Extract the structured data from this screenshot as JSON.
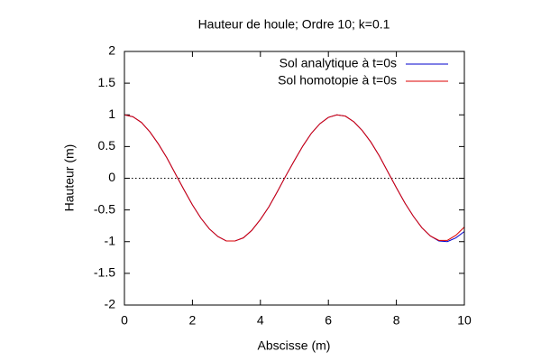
{
  "chart_data": {
    "type": "line",
    "title": "Hauteur de houle; Ordre 10; k=0.1",
    "x_label": "Abscisse (m)",
    "y_label": "Hauteur (m)",
    "x": [
      0,
      0.25,
      0.5,
      0.75,
      1,
      1.25,
      1.5,
      1.75,
      2,
      2.25,
      2.5,
      2.75,
      3,
      3.25,
      3.5,
      3.75,
      4,
      4.25,
      4.5,
      4.75,
      5,
      5.25,
      5.5,
      5.75,
      6,
      6.25,
      6.5,
      6.75,
      7,
      7.25,
      7.5,
      7.75,
      8,
      8.25,
      8.5,
      8.75,
      9,
      9.25,
      9.5,
      9.75,
      10
    ],
    "series": [
      {
        "name": "Sol analytique à t=0s",
        "color": "#0000cc",
        "values": [
          1,
          0.97,
          0.88,
          0.73,
          0.54,
          0.32,
          0.07,
          -0.18,
          -0.42,
          -0.63,
          -0.8,
          -0.92,
          -0.99,
          -0.99,
          -0.94,
          -0.82,
          -0.65,
          -0.45,
          -0.21,
          0.04,
          0.28,
          0.51,
          0.71,
          0.86,
          0.96,
          1,
          0.98,
          0.89,
          0.75,
          0.57,
          0.35,
          0.1,
          -0.15,
          -0.39,
          -0.6,
          -0.78,
          -0.91,
          -0.99,
          -1,
          -0.94,
          -0.84
        ]
      },
      {
        "name": "Sol homotopie à t=0s",
        "color": "#dd0000",
        "values": [
          1,
          0.97,
          0.88,
          0.73,
          0.54,
          0.32,
          0.07,
          -0.18,
          -0.42,
          -0.63,
          -0.8,
          -0.92,
          -0.99,
          -0.99,
          -0.94,
          -0.82,
          -0.65,
          -0.45,
          -0.21,
          0.04,
          0.28,
          0.51,
          0.71,
          0.86,
          0.96,
          1,
          0.98,
          0.89,
          0.75,
          0.57,
          0.35,
          0.1,
          -0.15,
          -0.39,
          -0.6,
          -0.78,
          -0.91,
          -0.98,
          -0.98,
          -0.9,
          -0.77
        ]
      }
    ],
    "xlim": [
      0,
      10
    ],
    "xticks": [
      0,
      2,
      4,
      6,
      8,
      10
    ],
    "ylim": [
      -2,
      2
    ],
    "yticks": [
      -2,
      -1.5,
      -1,
      -0.5,
      0,
      0.5,
      1,
      1.5,
      2
    ],
    "zeroaxis": true,
    "legend": "top-right"
  }
}
